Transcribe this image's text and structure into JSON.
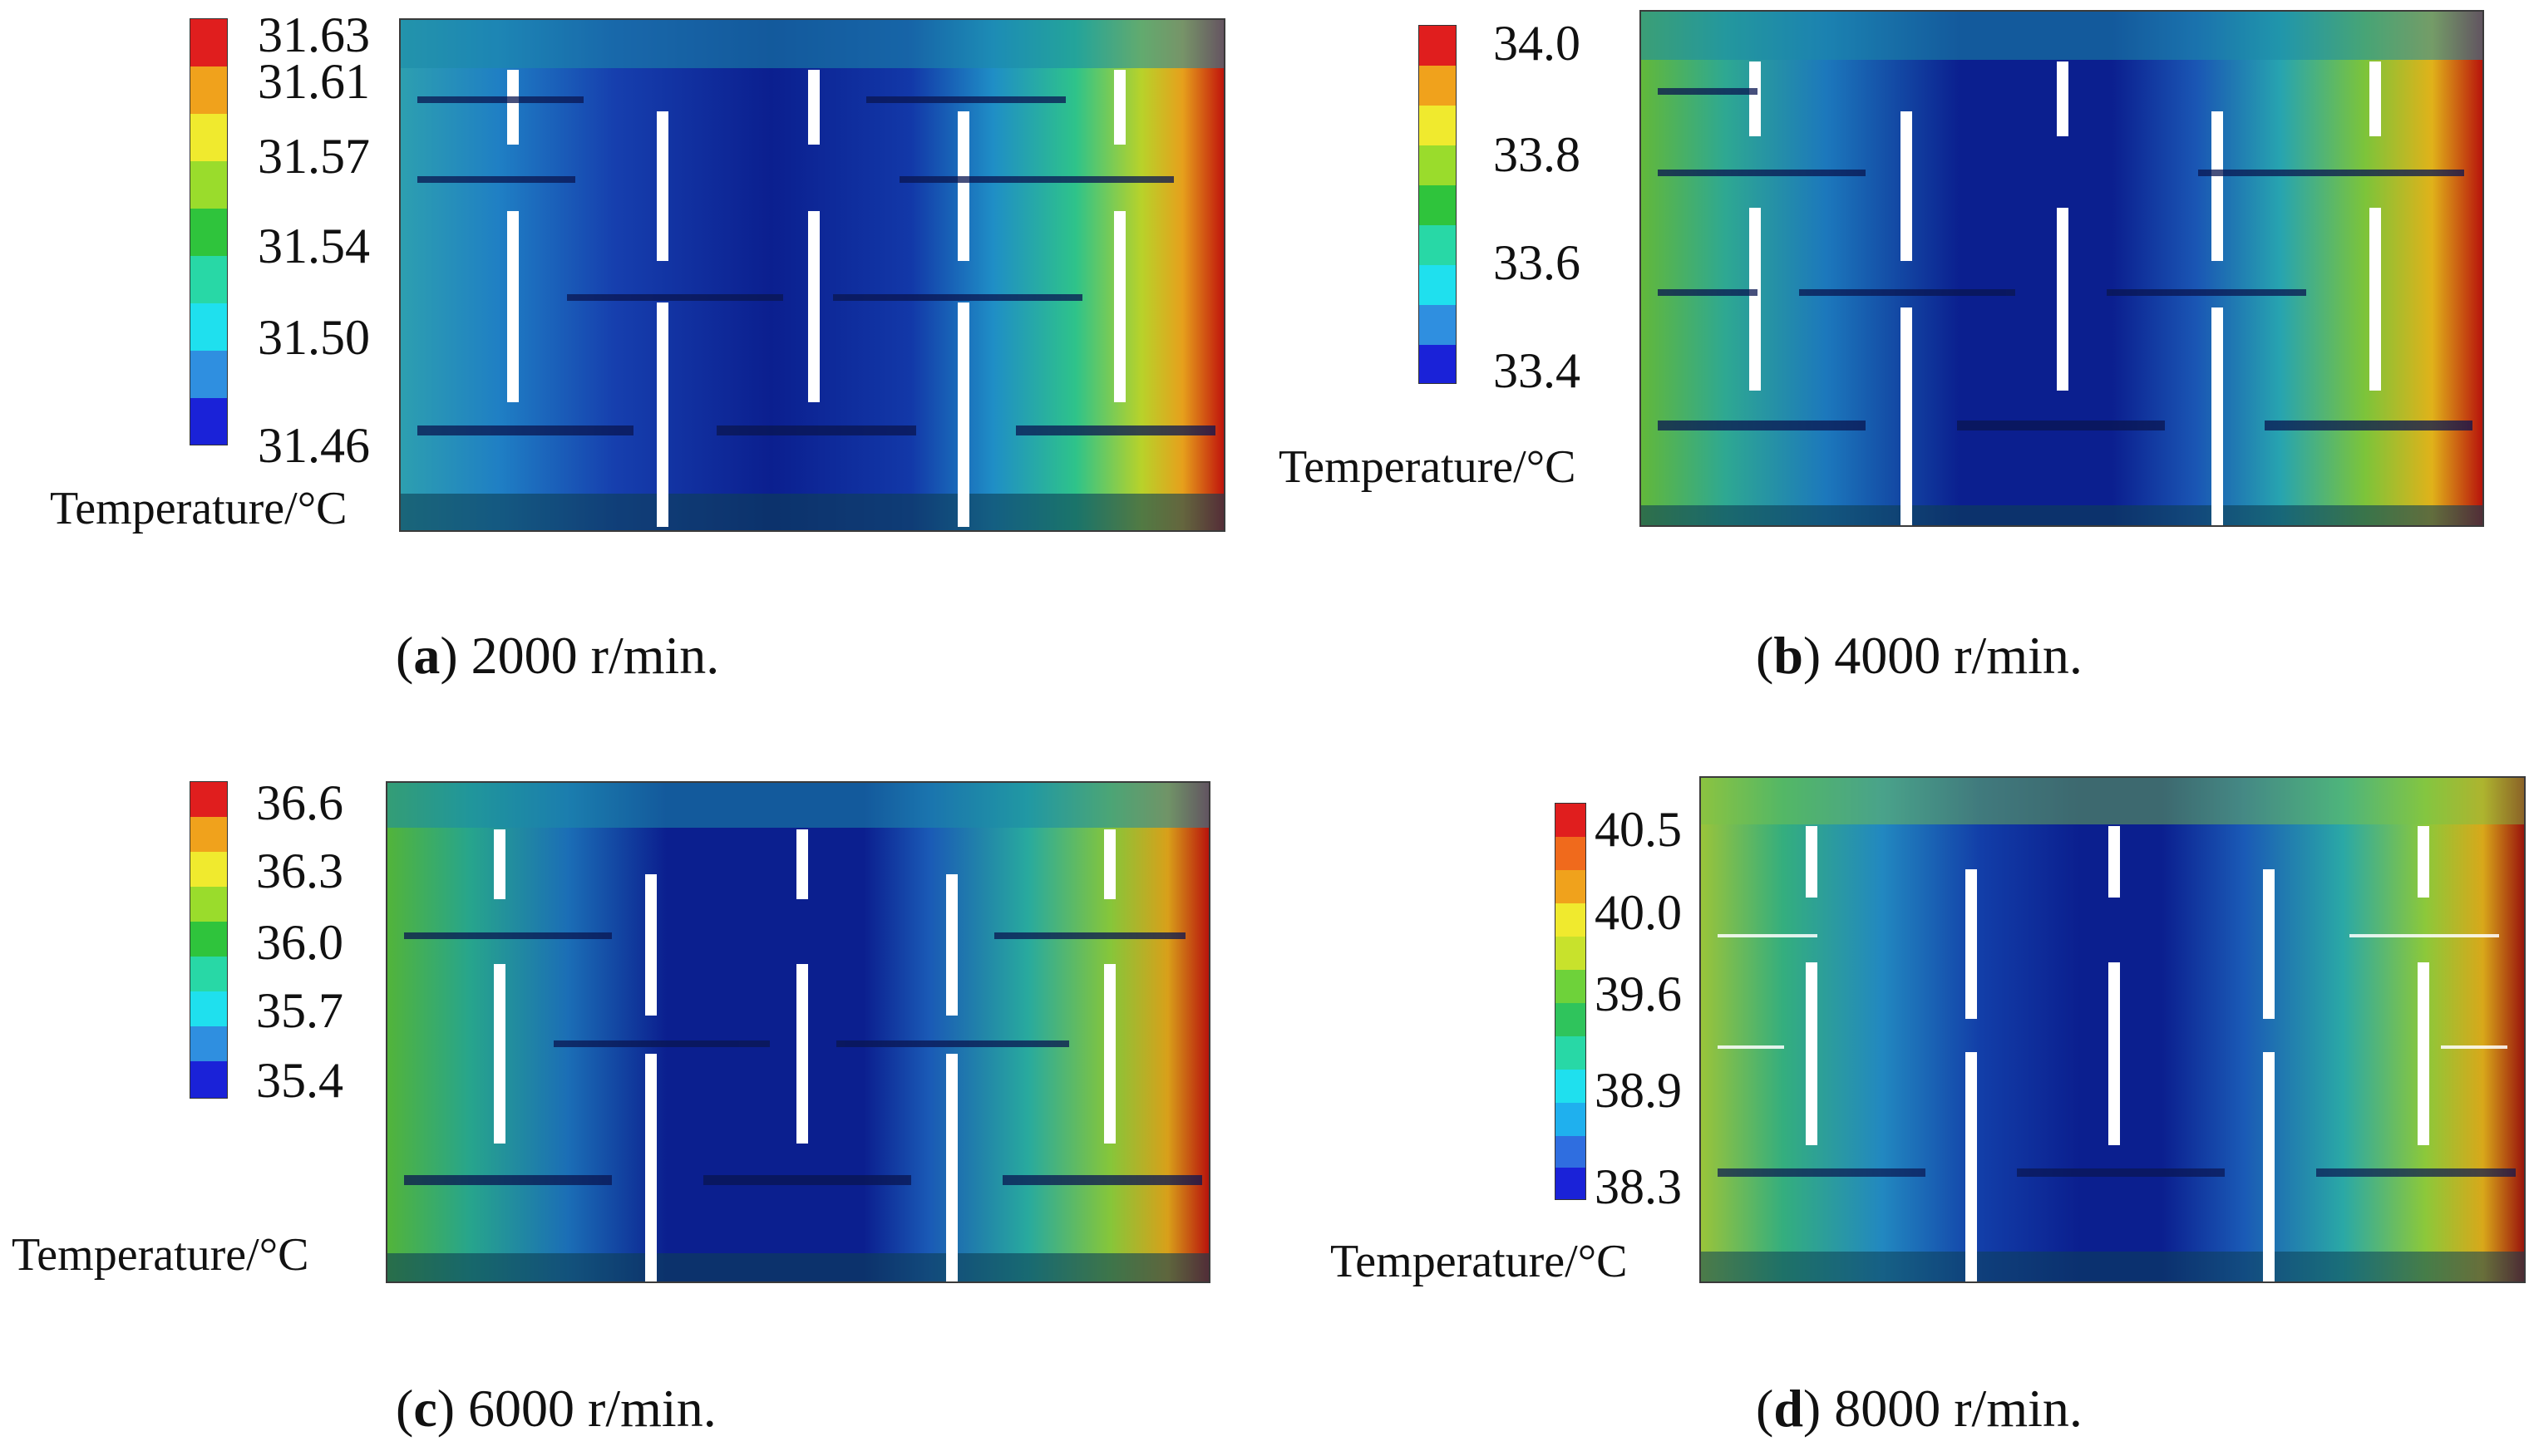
{
  "colors": {
    "scale": [
      "#1a22d8",
      "#2f8fe0",
      "#1fe0ee",
      "#28d8a6",
      "#2fc43c",
      "#9adc2c",
      "#f0ea2e",
      "#f0a21c",
      "#e01e1e"
    ],
    "field_cool": "#0b1f8f",
    "field_mid": "#2fa6c6",
    "field_warm": "#e6c21c",
    "field_hot": "#c0140c"
  },
  "panels": [
    {
      "id": "a",
      "letter": "a",
      "speed": "2000 r/min.",
      "unit": "Temperature/°C",
      "ticks": [
        "31.63",
        "31.61",
        "31.57",
        "31.54",
        "31.50",
        "31.46"
      ]
    },
    {
      "id": "b",
      "letter": "b",
      "speed": "4000 r/min.",
      "unit": "Temperature/°C",
      "ticks": [
        "34.0",
        "33.8",
        "33.6",
        "33.4"
      ]
    },
    {
      "id": "c",
      "letter": "c",
      "speed": "6000 r/min.",
      "unit": "Temperature/°C",
      "ticks": [
        "36.6",
        "36.3",
        "36.0",
        "35.7",
        "35.4"
      ]
    },
    {
      "id": "d",
      "letter": "d",
      "speed": "8000 r/min.",
      "unit": "Temperature/°C",
      "ticks": [
        "40.5",
        "40.0",
        "39.6",
        "38.9",
        "38.3"
      ]
    }
  ]
}
